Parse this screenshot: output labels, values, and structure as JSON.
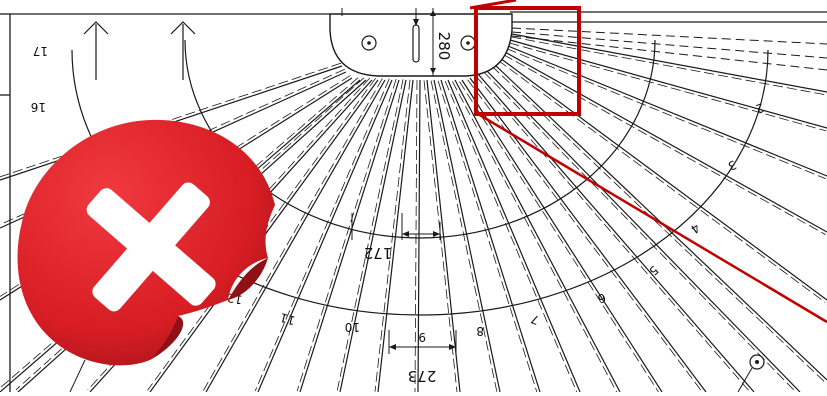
{
  "dimensions": {
    "top_depth": "280",
    "inner_tread": "172",
    "outer_tread": "273"
  },
  "step_numbers": [
    "2",
    "3",
    "4",
    "5",
    "6",
    "7",
    "8",
    "9",
    "10",
    "11",
    "12",
    "16",
    "17"
  ],
  "colors": {
    "line": "#1a1a1a",
    "highlight": "#c00000",
    "badge_red": "#e0252b",
    "badge_dark": "#9e1418",
    "badge_cross": "#ffffff"
  },
  "icons": {
    "error_badge": "x-mark-icon"
  }
}
